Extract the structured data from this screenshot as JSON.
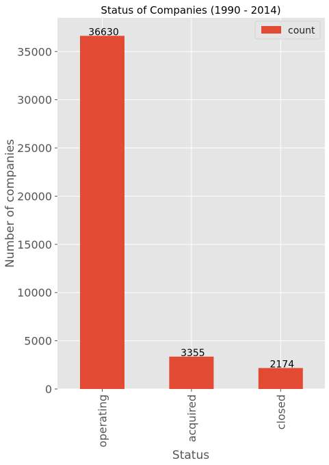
{
  "chart_data": {
    "type": "bar",
    "title": "Status of Companies (1990 - 2014)",
    "xlabel": "Status",
    "ylabel": "Number of companies",
    "categories": [
      "operating",
      "acquired",
      "closed"
    ],
    "series": [
      {
        "name": "count",
        "values": [
          36630,
          3355,
          2174
        ]
      }
    ],
    "data_labels": [
      "36630",
      "3355",
      "2174"
    ],
    "ylim": [
      0,
      38500
    ],
    "yticks": [
      0,
      5000,
      10000,
      15000,
      20000,
      25000,
      30000,
      35000
    ],
    "ytick_labels": [
      "0",
      "5000",
      "10000",
      "15000",
      "20000",
      "25000",
      "30000",
      "35000"
    ],
    "grid": true,
    "legend_position": "top-right",
    "colors": {
      "bar": "#E24A33",
      "plot_bg": "#E5E5E5",
      "grid": "#FFFFFF"
    }
  }
}
